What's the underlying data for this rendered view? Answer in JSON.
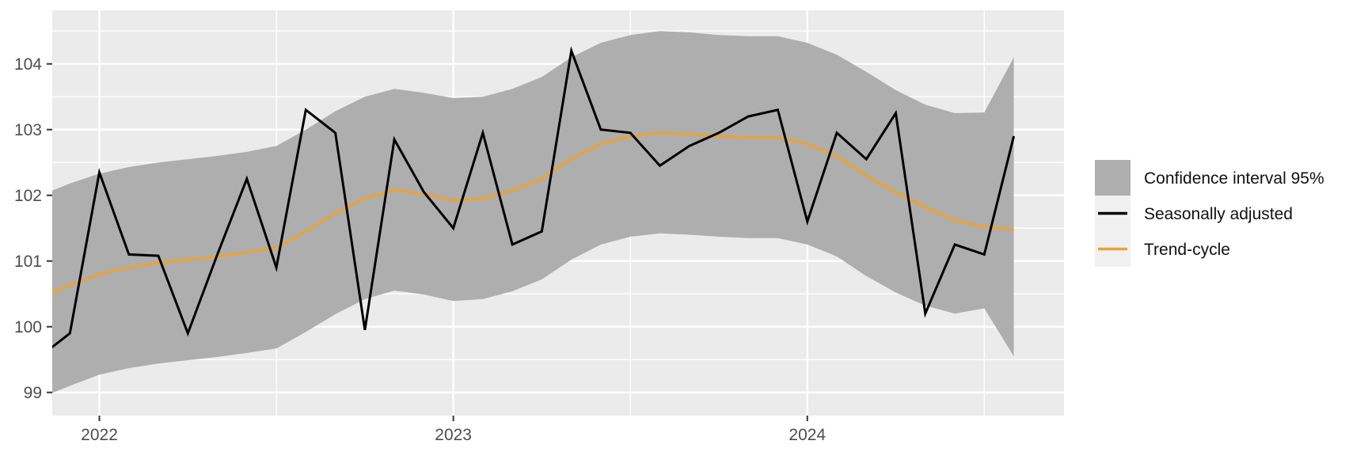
{
  "colors": {
    "panel_bg": "#EBEBEB",
    "grid": "#FFFFFF",
    "ribbon": "#AEAEAE",
    "series_black": "#000000",
    "series_orange": "#E8A33C",
    "axis_text": "#4D4D4D",
    "tick_mark": "#333333",
    "legend_key_bg": "#F0F0F0",
    "legend_text": "#111111"
  },
  "legend": {
    "items": [
      {
        "label": "Confidence interval 95%",
        "type": "fill",
        "color": "#AEAEAE"
      },
      {
        "label": "Seasonally adjusted",
        "type": "line",
        "color": "#000000"
      },
      {
        "label": "Trend-cycle",
        "type": "line",
        "color": "#E8A33C"
      }
    ]
  },
  "chart_data": {
    "type": "line",
    "title": "",
    "xlabel": "",
    "ylabel": "",
    "x": [
      "2021-11",
      "2021-12",
      "2022-01",
      "2022-02",
      "2022-03",
      "2022-04",
      "2022-05",
      "2022-06",
      "2022-07",
      "2022-08",
      "2022-09",
      "2022-10",
      "2022-11",
      "2022-12",
      "2023-01",
      "2023-02",
      "2023-03",
      "2023-04",
      "2023-05",
      "2023-06",
      "2023-07",
      "2023-08",
      "2023-09",
      "2023-10",
      "2023-11",
      "2023-12",
      "2024-01",
      "2024-02",
      "2024-03",
      "2024-04",
      "2024-05",
      "2024-06",
      "2024-07",
      "2024-08"
    ],
    "series": [
      {
        "name": "Seasonally adjusted",
        "color": "#000000",
        "values": [
          99.55,
          99.9,
          102.35,
          101.1,
          101.08,
          99.9,
          101.1,
          102.25,
          100.9,
          103.3,
          102.95,
          99.95,
          102.85,
          102.05,
          101.5,
          102.95,
          101.25,
          101.45,
          104.2,
          103.0,
          102.95,
          102.45,
          102.75,
          102.95,
          103.2,
          103.3,
          101.6,
          102.95,
          102.55,
          103.25,
          100.2,
          101.25,
          101.1,
          102.9
        ]
      },
      {
        "name": "Trend-cycle",
        "color": "#E8A33C",
        "values": [
          100.45,
          100.63,
          100.8,
          100.9,
          100.97,
          101.02,
          101.07,
          101.13,
          101.2,
          101.45,
          101.72,
          101.95,
          102.08,
          102.02,
          101.92,
          101.95,
          102.07,
          102.25,
          102.55,
          102.78,
          102.9,
          102.95,
          102.93,
          102.9,
          102.88,
          102.88,
          102.78,
          102.6,
          102.3,
          102.05,
          101.82,
          101.62,
          101.52,
          101.48
        ]
      }
    ],
    "band": {
      "name": "Confidence interval 95%",
      "color": "#AEAEAE",
      "upper": [
        102.0,
        102.18,
        102.33,
        102.43,
        102.5,
        102.55,
        102.6,
        102.66,
        102.75,
        103.0,
        103.28,
        103.5,
        103.62,
        103.56,
        103.48,
        103.5,
        103.62,
        103.8,
        104.1,
        104.32,
        104.44,
        104.5,
        104.48,
        104.44,
        104.42,
        104.42,
        104.32,
        104.14,
        103.88,
        103.6,
        103.38,
        103.25,
        103.26,
        104.1
      ],
      "lower": [
        98.92,
        99.1,
        99.27,
        99.37,
        99.44,
        99.49,
        99.54,
        99.6,
        99.67,
        99.92,
        100.19,
        100.42,
        100.55,
        100.49,
        100.39,
        100.42,
        100.54,
        100.72,
        101.02,
        101.25,
        101.37,
        101.42,
        101.4,
        101.37,
        101.35,
        101.35,
        101.25,
        101.07,
        100.77,
        100.52,
        100.32,
        100.2,
        100.28,
        99.55
      ]
    },
    "y_ticks": [
      99,
      100,
      101,
      102,
      103,
      104
    ],
    "y_minor": [
      99.5,
      100.5,
      101.5,
      102.5,
      103.5,
      104.5
    ],
    "x_ticks": [
      {
        "index": 2,
        "label": "2022"
      },
      {
        "index": 14,
        "label": "2023"
      },
      {
        "index": 26,
        "label": "2024"
      }
    ],
    "x_minor_indices": [
      8,
      20,
      32
    ],
    "ylim": [
      98.67,
      104.82
    ],
    "grid": true,
    "legend_position": "right"
  }
}
